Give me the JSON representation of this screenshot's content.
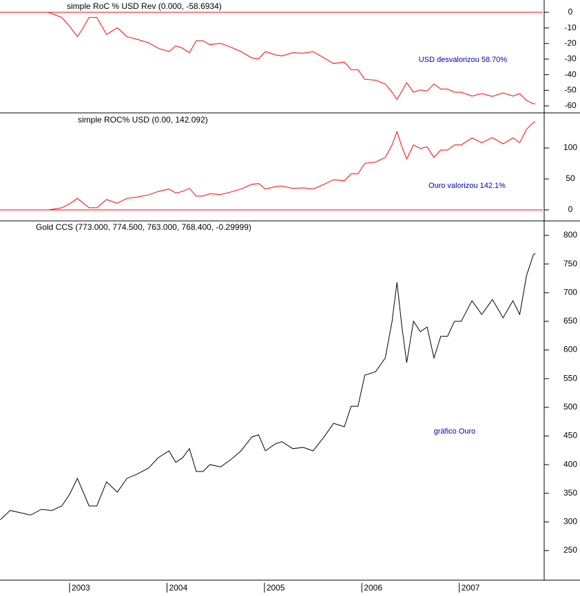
{
  "chart_data": [
    {
      "type": "line",
      "title": "simple RoC % USD Rev (0.000, -58.6934)",
      "annotation": "USD desvalorizou 58.70%",
      "hline": 0,
      "ylim": [
        -64,
        7.9
      ],
      "yticks": [
        0,
        -10,
        -20,
        -30,
        -40,
        -50,
        -60
      ],
      "xlim": [
        2002.286,
        2007.857
      ],
      "x": [
        2002.78,
        2002.82,
        2002.92,
        2003.0,
        2003.08,
        2003.13,
        2003.2,
        2003.28,
        2003.38,
        2003.49,
        2003.59,
        2003.7,
        2003.81,
        2003.91,
        2004.02,
        2004.09,
        2004.16,
        2004.23,
        2004.3,
        2004.37,
        2004.44,
        2004.55,
        2004.65,
        2004.76,
        2004.87,
        2004.94,
        2005.01,
        2005.11,
        2005.18,
        2005.29,
        2005.4,
        2005.5,
        2005.61,
        2005.71,
        2005.82,
        2005.89,
        2005.96,
        2006.03,
        2006.14,
        2006.24,
        2006.31,
        2006.36,
        2006.41,
        2006.46,
        2006.53,
        2006.6,
        2006.67,
        2006.74,
        2006.81,
        2006.88,
        2006.95,
        2007.02,
        2007.13,
        2007.23,
        2007.34,
        2007.45,
        2007.55,
        2007.62,
        2007.69,
        2007.76,
        2007.78
      ],
      "series": [
        {
          "color": "#ff0000",
          "values": [
            0,
            -0.9,
            -3.3,
            -8.8,
            -15.6,
            -10.9,
            -3.3,
            -3.3,
            -14.2,
            -9.9,
            -15.6,
            -17.4,
            -19.5,
            -23.0,
            -25.2,
            -21.5,
            -23.0,
            -25.9,
            -18.2,
            -18.2,
            -20.7,
            -19.9,
            -22.2,
            -25.2,
            -29.2,
            -29.8,
            -25.2,
            -27.2,
            -27.9,
            -25.9,
            -26.2,
            -25.2,
            -29.2,
            -32.8,
            -31.9,
            -36.8,
            -36.8,
            -42.9,
            -43.5,
            -45.9,
            -51.2,
            -55.8,
            -50.6,
            -45.1,
            -51.2,
            -49.8,
            -50.4,
            -45.9,
            -49.2,
            -49.2,
            -51.2,
            -51.2,
            -53.7,
            -52.1,
            -53.9,
            -51.6,
            -53.7,
            -52.1,
            -56.5,
            -58.6,
            -58.7
          ]
        }
      ]
    },
    {
      "type": "line",
      "title": "simple ROC% USD (0.00, 142.092)",
      "annotation": "Ouro valorizou 142.1%",
      "hline": 0,
      "ylim": [
        -16.7,
        156.7
      ],
      "yticks": [
        0,
        50,
        100
      ],
      "xlim": [
        2002.286,
        2007.857
      ],
      "x": [
        2002.78,
        2002.82,
        2002.92,
        2003.0,
        2003.08,
        2003.13,
        2003.2,
        2003.28,
        2003.38,
        2003.49,
        2003.59,
        2003.7,
        2003.81,
        2003.91,
        2004.02,
        2004.09,
        2004.16,
        2004.23,
        2004.3,
        2004.37,
        2004.44,
        2004.55,
        2004.65,
        2004.76,
        2004.87,
        2004.94,
        2005.01,
        2005.11,
        2005.18,
        2005.29,
        2005.4,
        2005.5,
        2005.61,
        2005.71,
        2005.82,
        2005.89,
        2005.96,
        2006.03,
        2006.14,
        2006.24,
        2006.31,
        2006.36,
        2006.41,
        2006.46,
        2006.53,
        2006.6,
        2006.67,
        2006.74,
        2006.81,
        2006.88,
        2006.95,
        2007.02,
        2007.13,
        2007.23,
        2007.34,
        2007.45,
        2007.55,
        2007.62,
        2007.69,
        2007.76,
        2007.78
      ],
      "series": [
        {
          "color": "#ff0000",
          "values": [
            0,
            0.9,
            3.4,
            9.7,
            18.5,
            12.2,
            3.4,
            3.4,
            16.6,
            10.9,
            18.5,
            21.0,
            24.2,
            29.8,
            33.6,
            27.3,
            29.8,
            34.9,
            22.3,
            22.3,
            26.1,
            24.8,
            28.6,
            33.6,
            41.2,
            42.5,
            33.6,
            37.4,
            38.7,
            34.9,
            35.5,
            33.6,
            41.2,
            48.8,
            46.9,
            58.2,
            58.2,
            75.2,
            77.1,
            84.7,
            104.9,
            126.3,
            102.3,
            82.2,
            104.9,
            99.2,
            101.7,
            84.7,
            96.7,
            96.7,
            104.9,
            104.9,
            116.2,
            108.6,
            116.8,
            106.7,
            116.2,
            108.6,
            130.1,
            141.4,
            142.1
          ]
        }
      ]
    },
    {
      "type": "line",
      "title": "Gold CCS (773.000, 774.500, 763.000, 768.400, -0.29999)",
      "annotation": "gráfico Ouro",
      "ylim": [
        198.4,
        825.2
      ],
      "yticks": [
        250,
        300,
        350,
        400,
        450,
        500,
        550,
        600,
        650,
        700,
        750,
        800
      ],
      "xlim": [
        2002.286,
        2007.857
      ],
      "xticks": [
        2003,
        2004,
        2005,
        2006,
        2007
      ],
      "x": [
        2002.29,
        2002.39,
        2002.5,
        2002.6,
        2002.71,
        2002.82,
        2002.92,
        2003.0,
        2003.08,
        2003.13,
        2003.2,
        2003.28,
        2003.38,
        2003.49,
        2003.59,
        2003.7,
        2003.81,
        2003.91,
        2004.02,
        2004.09,
        2004.16,
        2004.23,
        2004.3,
        2004.37,
        2004.44,
        2004.55,
        2004.65,
        2004.76,
        2004.87,
        2004.94,
        2005.01,
        2005.11,
        2005.18,
        2005.29,
        2005.4,
        2005.5,
        2005.61,
        2005.71,
        2005.82,
        2005.89,
        2005.96,
        2006.03,
        2006.14,
        2006.24,
        2006.31,
        2006.36,
        2006.41,
        2006.46,
        2006.53,
        2006.6,
        2006.67,
        2006.74,
        2006.81,
        2006.88,
        2006.95,
        2007.02,
        2007.13,
        2007.23,
        2007.34,
        2007.45,
        2007.55,
        2007.62,
        2007.69,
        2007.76,
        2007.78
      ],
      "series": [
        {
          "color": "#000000",
          "values": [
            304,
            320,
            316,
            312,
            322,
            320,
            328,
            348,
            376,
            356,
            328,
            328,
            370,
            352,
            376,
            384,
            394,
            412,
            424,
            404,
            412,
            428,
            388,
            388,
            400,
            396,
            408,
            424,
            448,
            452,
            424,
            436,
            440,
            428,
            430,
            424,
            448,
            472,
            466,
            502,
            502,
            556,
            562,
            586,
            650,
            718,
            642,
            578,
            650,
            632,
            640,
            586,
            624,
            624,
            650,
            650,
            686,
            662,
            688,
            656,
            686,
            662,
            730,
            766,
            769
          ]
        }
      ]
    }
  ]
}
